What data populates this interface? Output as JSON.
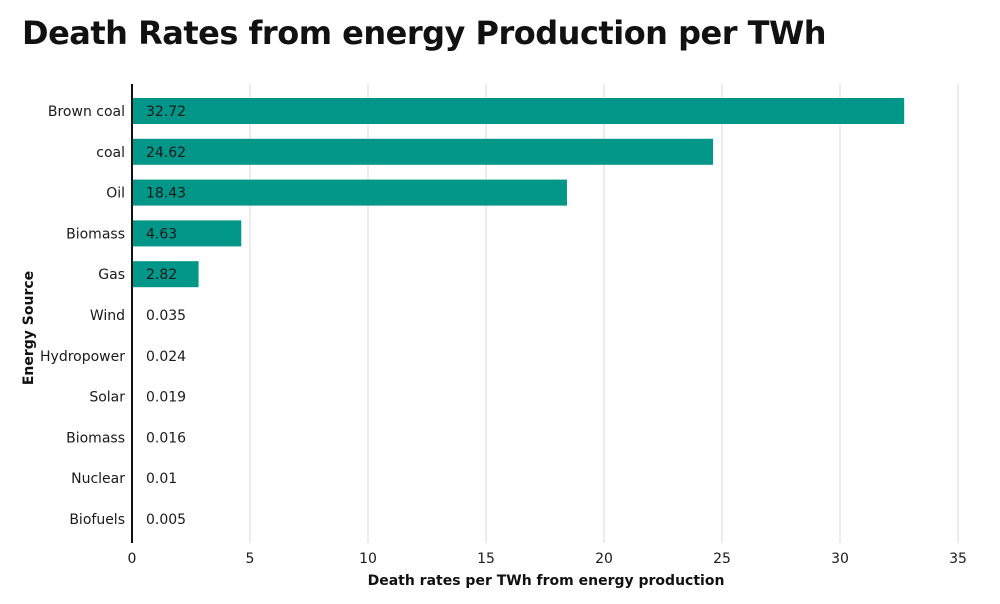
{
  "chart_data": {
    "type": "bar",
    "orientation": "horizontal",
    "title": "Death Rates from energy Production per TWh",
    "xlabel": "Death rates per TWh from energy production",
    "ylabel": "Energy Source",
    "categories": [
      "Brown coal",
      "coal",
      "Oil",
      "Biomass",
      "Gas",
      "Wind",
      "Hydropower",
      "Solar",
      "Biomass",
      "Nuclear",
      "Biofuels"
    ],
    "values": [
      32.72,
      24.62,
      18.43,
      4.63,
      2.82,
      0.035,
      0.024,
      0.019,
      0.016,
      0.01,
      0.005
    ],
    "value_labels": [
      "32.72",
      "24.62",
      "18.43",
      "4.63",
      "2.82",
      "0.035",
      "0.024",
      "0.019",
      "0.016",
      "0.01",
      "0.005"
    ],
    "xlim": [
      0,
      35
    ],
    "xticks": [
      0,
      5,
      10,
      15,
      20,
      25,
      30,
      35
    ],
    "grid": true,
    "bar_color": "#009688",
    "grid_color": "#d9d9d9",
    "axis_color": "#111111"
  }
}
